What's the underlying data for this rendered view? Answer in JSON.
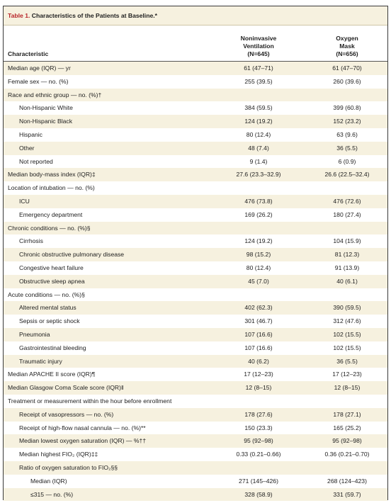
{
  "table": {
    "title_number": "Table 1.",
    "title_text": "Characteristics of the Patients at Baseline.*",
    "header": {
      "characteristic": "Characteristic",
      "col1": [
        "Noninvasive",
        "Ventilation",
        "(N=645)"
      ],
      "col2": [
        "Oxygen",
        "Mask",
        "(N=656)"
      ]
    },
    "rows": [
      {
        "label": "Median age (IQR) — yr",
        "v1": "61 (47–71)",
        "v2": "61 (47–70)",
        "indent": 0
      },
      {
        "label": "Female sex — no. (%)",
        "v1": "255 (39.5)",
        "v2": "260 (39.6)",
        "indent": 0
      },
      {
        "label": "Race and ethnic group — no. (%)†",
        "v1": "",
        "v2": "",
        "indent": 0
      },
      {
        "label": "Non-Hispanic White",
        "v1": "384 (59.5)",
        "v2": "399 (60.8)",
        "indent": 1
      },
      {
        "label": "Non-Hispanic Black",
        "v1": "124 (19.2)",
        "v2": "152 (23.2)",
        "indent": 1
      },
      {
        "label": "Hispanic",
        "v1": "80 (12.4)",
        "v2": "63 (9.6)",
        "indent": 1
      },
      {
        "label": "Other",
        "v1": "48 (7.4)",
        "v2": "36 (5.5)",
        "indent": 1
      },
      {
        "label": "Not reported",
        "v1": "9 (1.4)",
        "v2": "6 (0.9)",
        "indent": 1
      },
      {
        "label": "Median body-mass index (IQR)‡",
        "v1": "27.6 (23.3–32.9)",
        "v2": "26.6 (22.5–32.4)",
        "indent": 0
      },
      {
        "label": "Location of intubation — no. (%)",
        "v1": "",
        "v2": "",
        "indent": 0
      },
      {
        "label": "ICU",
        "v1": "476 (73.8)",
        "v2": "476 (72.6)",
        "indent": 1
      },
      {
        "label": "Emergency department",
        "v1": "169 (26.2)",
        "v2": "180 (27.4)",
        "indent": 1
      },
      {
        "label": "Chronic conditions — no. (%)§",
        "v1": "",
        "v2": "",
        "indent": 0
      },
      {
        "label": "Cirrhosis",
        "v1": "124 (19.2)",
        "v2": "104 (15.9)",
        "indent": 1
      },
      {
        "label": "Chronic obstructive pulmonary disease",
        "v1": "98 (15.2)",
        "v2": "81 (12.3)",
        "indent": 1
      },
      {
        "label": "Congestive heart failure",
        "v1": "80 (12.4)",
        "v2": "91 (13.9)",
        "indent": 1
      },
      {
        "label": "Obstructive sleep apnea",
        "v1": "45 (7.0)",
        "v2": "40 (6.1)",
        "indent": 1
      },
      {
        "label": "Acute conditions — no. (%)§",
        "v1": "",
        "v2": "",
        "indent": 0
      },
      {
        "label": "Altered mental status",
        "v1": "402 (62.3)",
        "v2": "390 (59.5)",
        "indent": 1
      },
      {
        "label": "Sepsis or septic shock",
        "v1": "301 (46.7)",
        "v2": "312 (47.6)",
        "indent": 1
      },
      {
        "label": "Pneumonia",
        "v1": "107 (16.6)",
        "v2": "102 (15.5)",
        "indent": 1
      },
      {
        "label": "Gastrointestinal bleeding",
        "v1": "107 (16.6)",
        "v2": "102 (15.5)",
        "indent": 1
      },
      {
        "label": "Traumatic injury",
        "v1": "40 (6.2)",
        "v2": "36 (5.5)",
        "indent": 1
      },
      {
        "label": "Median APACHE II score (IQR)¶",
        "v1": "17 (12–23)",
        "v2": "17 (12–23)",
        "indent": 0
      },
      {
        "label": "Median Glasgow Coma Scale score (IQR)‖",
        "v1": "12 (8–15)",
        "v2": "12 (8–15)",
        "indent": 0
      },
      {
        "label": "Treatment or measurement within the hour before enrollment",
        "v1": "",
        "v2": "",
        "indent": 0
      },
      {
        "label": "Receipt of vasopressors — no. (%)",
        "v1": "178 (27.6)",
        "v2": "178 (27.1)",
        "indent": 1
      },
      {
        "label": "Receipt of high-flow nasal cannula — no. (%)**",
        "v1": "150 (23.3)",
        "v2": "165 (25.2)",
        "indent": 1
      },
      {
        "label": "Median lowest oxygen saturation (IQR) — %††",
        "v1": "95 (92–98)",
        "v2": "95 (92–98)",
        "indent": 1
      },
      {
        "label": "Median highest FIO₂ (IQR)‡‡",
        "v1": "0.33 (0.21–0.66)",
        "v2": "0.36 (0.21–0.70)",
        "indent": 1
      },
      {
        "label": "Ratio of oxygen saturation to FIO₂§§",
        "v1": "",
        "v2": "",
        "indent": 1
      },
      {
        "label": "Median (IQR)",
        "v1": "271 (145–426)",
        "v2": "268 (124–423)",
        "indent": 2
      },
      {
        "label": "≤315 — no. (%)",
        "v1": "328 (58.9)",
        "v2": "331 (59.7)",
        "indent": 2
      }
    ]
  }
}
